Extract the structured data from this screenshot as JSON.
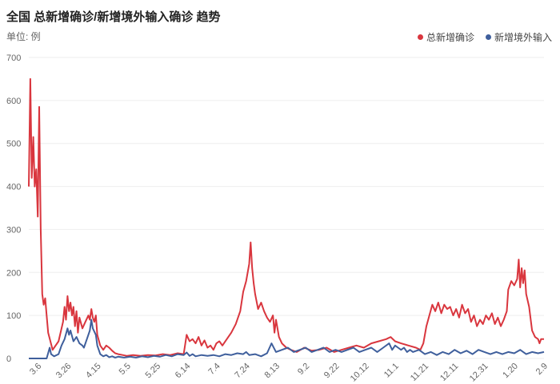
{
  "chart_data": {
    "type": "line",
    "title": "全国 总新增确诊/新增境外输入确诊 趋势",
    "unit_label": "单位: 例",
    "ylim": [
      0,
      700
    ],
    "yticks": [
      0,
      100,
      200,
      300,
      400,
      500,
      600,
      700
    ],
    "grid": true,
    "legend_position": "top-right",
    "xtick_labels": [
      {
        "label": "3.6",
        "day": 6
      },
      {
        "label": "3.26",
        "day": 26
      },
      {
        "label": "4.15",
        "day": 46
      },
      {
        "label": "5.5",
        "day": 66
      },
      {
        "label": "5.25",
        "day": 86
      },
      {
        "label": "6.14",
        "day": 106
      },
      {
        "label": "7.4",
        "day": 126
      },
      {
        "label": "7.24",
        "day": 146
      },
      {
        "label": "8.13",
        "day": 166
      },
      {
        "label": "9.2",
        "day": 186
      },
      {
        "label": "9.22",
        "day": 206
      },
      {
        "label": "10.12",
        "day": 226
      },
      {
        "label": "11.1",
        "day": 246
      },
      {
        "label": "11.21",
        "day": 266
      },
      {
        "label": "12.11",
        "day": 286
      },
      {
        "label": "12.31",
        "day": 306
      },
      {
        "label": "1.20",
        "day": 326
      },
      {
        "label": "2.9",
        "day": 346
      }
    ],
    "series": [
      {
        "name": "总新增确诊",
        "color": "#d9363e",
        "points": [
          [
            0,
            400
          ],
          [
            1,
            650
          ],
          [
            2,
            420
          ],
          [
            3,
            515
          ],
          [
            4,
            400
          ],
          [
            5,
            440
          ],
          [
            6,
            330
          ],
          [
            7,
            585
          ],
          [
            8,
            300
          ],
          [
            9,
            150
          ],
          [
            10,
            125
          ],
          [
            11,
            140
          ],
          [
            12,
            100
          ],
          [
            13,
            60
          ],
          [
            16,
            20
          ],
          [
            20,
            40
          ],
          [
            23,
            85
          ],
          [
            24,
            120
          ],
          [
            25,
            90
          ],
          [
            26,
            145
          ],
          [
            27,
            110
          ],
          [
            28,
            130
          ],
          [
            29,
            100
          ],
          [
            30,
            120
          ],
          [
            31,
            75
          ],
          [
            32,
            110
          ],
          [
            33,
            60
          ],
          [
            34,
            95
          ],
          [
            36,
            70
          ],
          [
            38,
            85
          ],
          [
            40,
            100
          ],
          [
            41,
            90
          ],
          [
            42,
            115
          ],
          [
            43,
            95
          ],
          [
            44,
            85
          ],
          [
            45,
            100
          ],
          [
            46,
            55
          ],
          [
            48,
            30
          ],
          [
            50,
            20
          ],
          [
            52,
            30
          ],
          [
            54,
            25
          ],
          [
            56,
            18
          ],
          [
            58,
            12
          ],
          [
            60,
            10
          ],
          [
            63,
            8
          ],
          [
            66,
            6
          ],
          [
            70,
            8
          ],
          [
            75,
            6
          ],
          [
            80,
            8
          ],
          [
            85,
            7
          ],
          [
            90,
            10
          ],
          [
            95,
            8
          ],
          [
            100,
            12
          ],
          [
            104,
            10
          ],
          [
            106,
            55
          ],
          [
            108,
            40
          ],
          [
            110,
            45
          ],
          [
            112,
            35
          ],
          [
            114,
            50
          ],
          [
            116,
            30
          ],
          [
            118,
            42
          ],
          [
            120,
            25
          ],
          [
            122,
            30
          ],
          [
            124,
            20
          ],
          [
            126,
            35
          ],
          [
            128,
            40
          ],
          [
            130,
            30
          ],
          [
            133,
            45
          ],
          [
            136,
            60
          ],
          [
            139,
            80
          ],
          [
            142,
            110
          ],
          [
            144,
            155
          ],
          [
            146,
            180
          ],
          [
            148,
            220
          ],
          [
            149,
            270
          ],
          [
            150,
            210
          ],
          [
            151,
            175
          ],
          [
            152,
            150
          ],
          [
            154,
            115
          ],
          [
            156,
            130
          ],
          [
            158,
            110
          ],
          [
            160,
            95
          ],
          [
            162,
            85
          ],
          [
            164,
            100
          ],
          [
            165,
            60
          ],
          [
            166,
            90
          ],
          [
            168,
            50
          ],
          [
            170,
            35
          ],
          [
            173,
            25
          ],
          [
            176,
            20
          ],
          [
            180,
            15
          ],
          [
            185,
            25
          ],
          [
            190,
            18
          ],
          [
            195,
            20
          ],
          [
            200,
            25
          ],
          [
            205,
            15
          ],
          [
            210,
            20
          ],
          [
            215,
            25
          ],
          [
            220,
            30
          ],
          [
            225,
            25
          ],
          [
            230,
            35
          ],
          [
            235,
            40
          ],
          [
            240,
            45
          ],
          [
            243,
            50
          ],
          [
            246,
            40
          ],
          [
            250,
            35
          ],
          [
            255,
            30
          ],
          [
            260,
            25
          ],
          [
            263,
            20
          ],
          [
            265,
            35
          ],
          [
            267,
            75
          ],
          [
            269,
            100
          ],
          [
            271,
            125
          ],
          [
            273,
            110
          ],
          [
            275,
            130
          ],
          [
            277,
            105
          ],
          [
            279,
            125
          ],
          [
            281,
            115
          ],
          [
            283,
            120
          ],
          [
            285,
            100
          ],
          [
            287,
            115
          ],
          [
            289,
            95
          ],
          [
            291,
            125
          ],
          [
            293,
            105
          ],
          [
            295,
            115
          ],
          [
            297,
            85
          ],
          [
            299,
            100
          ],
          [
            301,
            75
          ],
          [
            303,
            90
          ],
          [
            305,
            80
          ],
          [
            307,
            100
          ],
          [
            309,
            90
          ],
          [
            311,
            105
          ],
          [
            313,
            80
          ],
          [
            315,
            95
          ],
          [
            317,
            75
          ],
          [
            319,
            90
          ],
          [
            321,
            110
          ],
          [
            322,
            160
          ],
          [
            324,
            180
          ],
          [
            326,
            170
          ],
          [
            328,
            185
          ],
          [
            329,
            230
          ],
          [
            330,
            165
          ],
          [
            331,
            210
          ],
          [
            332,
            175
          ],
          [
            333,
            205
          ],
          [
            334,
            150
          ],
          [
            336,
            120
          ],
          [
            338,
            65
          ],
          [
            340,
            50
          ],
          [
            342,
            45
          ],
          [
            343,
            35
          ],
          [
            344,
            45
          ],
          [
            346,
            45
          ]
        ]
      },
      {
        "name": "新增境外输入",
        "color": "#3f5f9c",
        "points": [
          [
            0,
            0
          ],
          [
            8,
            0
          ],
          [
            12,
            0
          ],
          [
            14,
            25
          ],
          [
            15,
            10
          ],
          [
            17,
            5
          ],
          [
            20,
            10
          ],
          [
            22,
            30
          ],
          [
            24,
            45
          ],
          [
            26,
            70
          ],
          [
            27,
            55
          ],
          [
            28,
            65
          ],
          [
            30,
            40
          ],
          [
            32,
            50
          ],
          [
            34,
            35
          ],
          [
            36,
            30
          ],
          [
            37,
            25
          ],
          [
            39,
            45
          ],
          [
            41,
            65
          ],
          [
            42,
            90
          ],
          [
            43,
            70
          ],
          [
            45,
            55
          ],
          [
            46,
            30
          ],
          [
            48,
            10
          ],
          [
            50,
            5
          ],
          [
            52,
            8
          ],
          [
            54,
            3
          ],
          [
            56,
            5
          ],
          [
            58,
            2
          ],
          [
            60,
            4
          ],
          [
            64,
            2
          ],
          [
            68,
            4
          ],
          [
            72,
            2
          ],
          [
            76,
            5
          ],
          [
            80,
            3
          ],
          [
            84,
            6
          ],
          [
            88,
            4
          ],
          [
            92,
            8
          ],
          [
            96,
            5
          ],
          [
            100,
            10
          ],
          [
            104,
            8
          ],
          [
            106,
            14
          ],
          [
            108,
            6
          ],
          [
            110,
            10
          ],
          [
            112,
            5
          ],
          [
            116,
            8
          ],
          [
            120,
            6
          ],
          [
            124,
            8
          ],
          [
            128,
            5
          ],
          [
            132,
            10
          ],
          [
            136,
            8
          ],
          [
            140,
            12
          ],
          [
            144,
            10
          ],
          [
            146,
            15
          ],
          [
            148,
            8
          ],
          [
            152,
            10
          ],
          [
            156,
            5
          ],
          [
            160,
            12
          ],
          [
            163,
            35
          ],
          [
            166,
            15
          ],
          [
            170,
            20
          ],
          [
            174,
            25
          ],
          [
            178,
            15
          ],
          [
            182,
            20
          ],
          [
            186,
            25
          ],
          [
            190,
            15
          ],
          [
            194,
            20
          ],
          [
            198,
            25
          ],
          [
            202,
            15
          ],
          [
            206,
            20
          ],
          [
            210,
            15
          ],
          [
            214,
            20
          ],
          [
            218,
            25
          ],
          [
            222,
            15
          ],
          [
            226,
            20
          ],
          [
            230,
            25
          ],
          [
            234,
            15
          ],
          [
            238,
            25
          ],
          [
            242,
            35
          ],
          [
            244,
            20
          ],
          [
            246,
            30
          ],
          [
            248,
            25
          ],
          [
            250,
            20
          ],
          [
            252,
            25
          ],
          [
            254,
            15
          ],
          [
            256,
            20
          ],
          [
            258,
            15
          ],
          [
            262,
            20
          ],
          [
            266,
            10
          ],
          [
            270,
            15
          ],
          [
            274,
            8
          ],
          [
            278,
            15
          ],
          [
            282,
            10
          ],
          [
            286,
            20
          ],
          [
            290,
            12
          ],
          [
            294,
            18
          ],
          [
            298,
            10
          ],
          [
            302,
            20
          ],
          [
            306,
            15
          ],
          [
            310,
            10
          ],
          [
            314,
            15
          ],
          [
            318,
            10
          ],
          [
            322,
            15
          ],
          [
            326,
            12
          ],
          [
            330,
            20
          ],
          [
            334,
            10
          ],
          [
            338,
            15
          ],
          [
            342,
            12
          ],
          [
            346,
            15
          ]
        ]
      }
    ]
  }
}
